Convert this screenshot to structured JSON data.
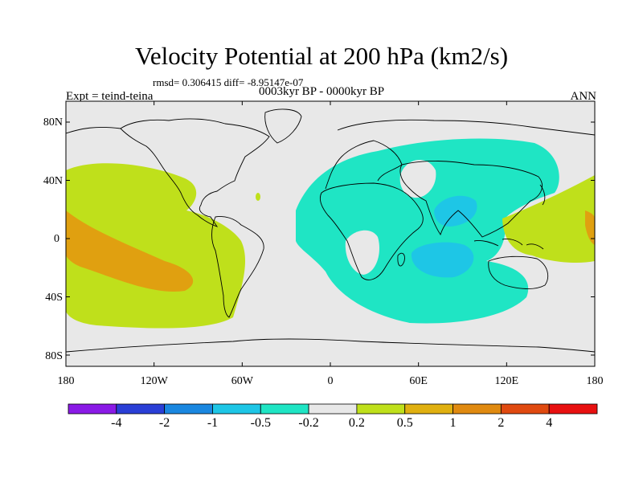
{
  "title": "Velocity Potential at 200 hPa (km2/s)",
  "subtitle": "rmsd= 0.306415 diff= -8.95147e-07",
  "center_string": "0003kyr BP - 0000kyr BP",
  "left_string": "Expt = teind-teina",
  "right_string": "ANN",
  "lat_labels": [
    "80N",
    "40N",
    "0",
    "40S",
    "80S"
  ],
  "lon_labels": [
    "180",
    "120W",
    "60W",
    "0",
    "60E",
    "120E",
    "180"
  ],
  "colorbar": {
    "levels": [
      "-4",
      "-2",
      "-1",
      "-0.5",
      "-0.2",
      "0.2",
      "0.5",
      "1",
      "2",
      "4"
    ],
    "colors": [
      "#8a1ae6",
      "#2a3fd6",
      "#1a87e0",
      "#1ec6e6",
      "#1fe5c4",
      "#e8e8e8",
      "#bfe01b",
      "#e0b010",
      "#e08a10",
      "#e04a10",
      "#e81010"
    ]
  },
  "field_colors": {
    "neutral": "#e8e8e8",
    "teal": "#1fe5c4",
    "lime": "#bfe01b",
    "blue": "#1ec6e6",
    "orange": "#e0a010"
  }
}
